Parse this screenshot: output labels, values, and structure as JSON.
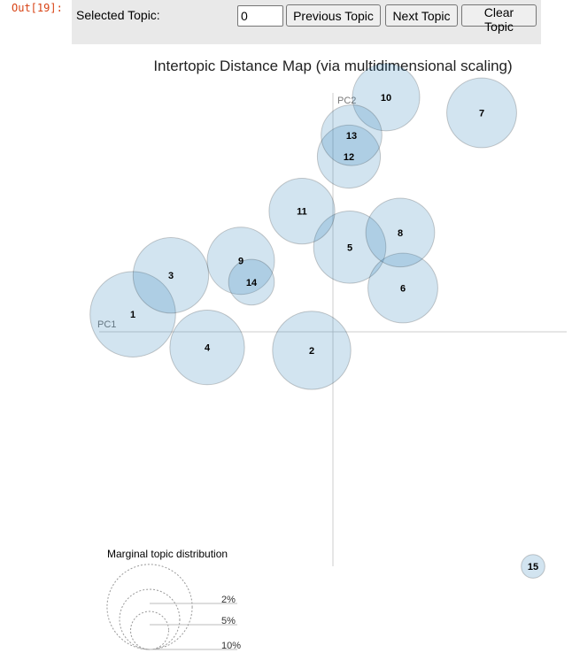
{
  "notebook": {
    "out_prompt": "Out[19]:"
  },
  "toolbar": {
    "selected_topic_label": "Selected Topic:",
    "selected_topic_value": "0",
    "previous_label": "Previous Topic",
    "next_label": "Next Topic",
    "clear_label": "Clear Topic"
  },
  "chart_data": {
    "type": "scatter",
    "title": "Intertopic Distance Map (via multidimensional scaling)",
    "xlabel": "PC1",
    "ylabel": "PC2",
    "bubble_color": "#1f77b4",
    "topics": [
      {
        "label": "1",
        "x": -0.226,
        "y": 0.018,
        "size": 10.5
      },
      {
        "label": "2",
        "x": -0.024,
        "y": -0.019,
        "size": 8.8
      },
      {
        "label": "3",
        "x": -0.183,
        "y": 0.058,
        "size": 8.2
      },
      {
        "label": "4",
        "x": -0.142,
        "y": -0.016,
        "size": 8.0
      },
      {
        "label": "5",
        "x": 0.019,
        "y": 0.087,
        "size": 7.5
      },
      {
        "label": "6",
        "x": 0.079,
        "y": 0.045,
        "size": 7.0
      },
      {
        "label": "7",
        "x": 0.168,
        "y": 0.225,
        "size": 7.0
      },
      {
        "label": "8",
        "x": 0.076,
        "y": 0.102,
        "size": 6.8
      },
      {
        "label": "9",
        "x": -0.104,
        "y": 0.073,
        "size": 6.5
      },
      {
        "label": "10",
        "x": 0.06,
        "y": 0.241,
        "size": 6.5
      },
      {
        "label": "11",
        "x": -0.035,
        "y": 0.124,
        "size": 6.2
      },
      {
        "label": "12",
        "x": 0.018,
        "y": 0.18,
        "size": 5.7
      },
      {
        "label": "13",
        "x": 0.021,
        "y": 0.202,
        "size": 5.3
      },
      {
        "label": "14",
        "x": -0.092,
        "y": 0.051,
        "size": 3.0
      },
      {
        "label": "15",
        "x": 0.226,
        "y": -0.241,
        "size": 0.8
      }
    ],
    "legend": {
      "title": "Marginal topic distribution",
      "entries": [
        {
          "label": "2%",
          "size": 2
        },
        {
          "label": "5%",
          "size": 5
        },
        {
          "label": "10%",
          "size": 10
        }
      ]
    }
  }
}
